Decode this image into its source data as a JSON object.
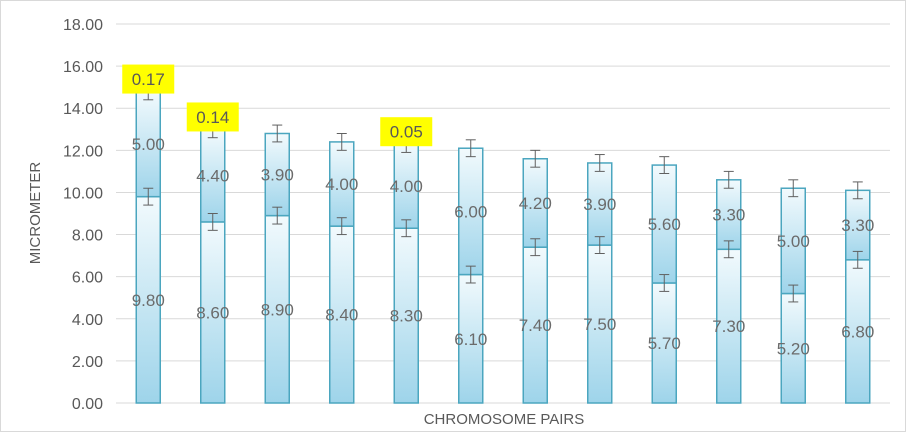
{
  "chart_data": {
    "type": "bar",
    "stacked": true,
    "xlabel": "CHROMOSOME PAIRS",
    "ylabel": "MICROMETER",
    "ylim": [
      0,
      18
    ],
    "yticks": [
      "0.00",
      "2.00",
      "4.00",
      "6.00",
      "8.00",
      "10.00",
      "12.00",
      "14.00",
      "16.00",
      "18.00"
    ],
    "grid": true,
    "bar_count": 12,
    "series": [
      {
        "values": [
          9.8,
          8.6,
          8.9,
          8.4,
          8.3,
          6.1,
          7.4,
          7.5,
          5.7,
          7.3,
          5.2,
          6.8
        ],
        "labels": [
          "9.80",
          "8.60",
          "8.90",
          "8.40",
          "8.30",
          "6.10",
          "7.40",
          "7.50",
          "5.70",
          "7.30",
          "5.20",
          "6.80"
        ]
      },
      {
        "values": [
          5.0,
          4.4,
          3.9,
          4.0,
          4.0,
          6.0,
          4.2,
          3.9,
          5.6,
          3.3,
          5.0,
          3.3
        ],
        "labels": [
          "5.00",
          "4.40",
          "3.90",
          "4.00",
          "4.00",
          "6.00",
          "4.20",
          "3.90",
          "5.60",
          "3.30",
          "5.00",
          "3.30"
        ]
      }
    ],
    "highlighted_labels": [
      {
        "bar_index": 0,
        "text": "0.17"
      },
      {
        "bar_index": 1,
        "text": "0.14"
      },
      {
        "bar_index": 4,
        "text": "0.05"
      }
    ],
    "colors": {
      "bar_top": "#f2fafd",
      "bar_bottom": "#9ed4ea",
      "bar_stroke": "#4ba6bf",
      "error_bar": "#606060",
      "gridline": "#d9d9d9",
      "highlight": "#ffff00"
    }
  }
}
